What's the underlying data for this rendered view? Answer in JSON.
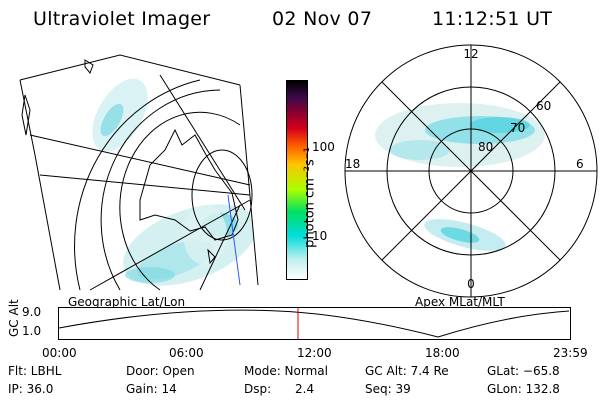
{
  "header": {
    "title": "Ultraviolet Imager",
    "date": "02 Nov 07",
    "time": "11:12:51 UT"
  },
  "left_panel": {
    "caption": "Geographic Lat/Lon"
  },
  "right_panel": {
    "caption": "Apex MLat/MLT",
    "lat_labels": [
      "80",
      "70",
      "60"
    ],
    "mlt_labels": {
      "top": "12",
      "bottom": "0",
      "left": "18",
      "right": "6"
    }
  },
  "colorbar": {
    "unit_label": "photon cm⁻²s⁻¹",
    "tick_labels": [
      "100",
      "10"
    ]
  },
  "orbit": {
    "ylabel": "GC Alt",
    "y_ticks": [
      "9.0",
      "1.0"
    ],
    "x_ticks": [
      "00:00",
      "06:00",
      "12:00",
      "18:00",
      "23:59"
    ]
  },
  "info": {
    "flt": "Flt: LBHL",
    "ip": "IP: 36.0",
    "door": "Door: Open",
    "gain": "Gain: 14",
    "mode": "Mode: Normal",
    "dsp_label": "Dsp:",
    "dsp_value": "2.4",
    "gc_alt": "GC Alt: 7.4 Re",
    "seq": "Seq: 39",
    "glat": "GLat: −65.8",
    "glon": "GLon: 132.8"
  }
}
